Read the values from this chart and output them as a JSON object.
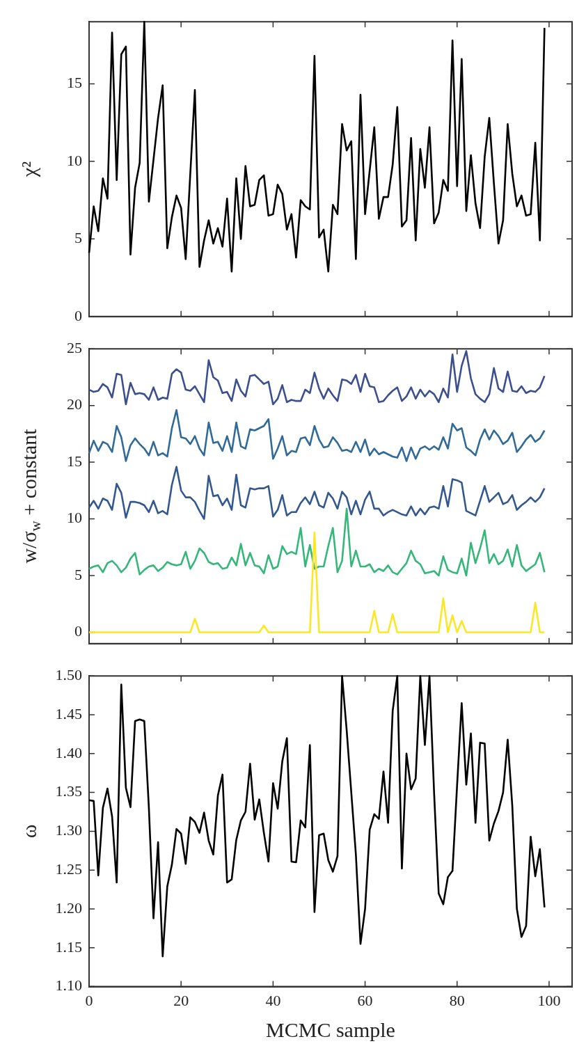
{
  "chart_data": [
    {
      "type": "line",
      "ylabel": "χ²",
      "xlim": [
        0,
        105
      ],
      "xticks": [
        0,
        20,
        40,
        60,
        80,
        100
      ],
      "ylim": [
        0,
        19
      ],
      "yticks": [
        0,
        5,
        10,
        15
      ],
      "tick_labels": "y",
      "legend": false,
      "marker": "none",
      "line_style": "solid",
      "x": [
        0,
        1,
        2,
        3,
        4,
        5,
        6,
        7,
        8,
        9,
        10,
        11,
        12,
        13,
        14,
        15,
        16,
        17,
        18,
        19,
        20,
        21,
        22,
        23,
        24,
        25,
        26,
        27,
        28,
        29,
        30,
        31,
        32,
        33,
        34,
        35,
        36,
        37,
        38,
        39,
        40,
        41,
        42,
        43,
        44,
        45,
        46,
        47,
        48,
        49,
        50,
        51,
        52,
        53,
        54,
        55,
        56,
        57,
        58,
        59,
        60,
        61,
        62,
        63,
        64,
        65,
        66,
        67,
        68,
        69,
        70,
        71,
        72,
        73,
        74,
        75,
        76,
        77,
        78,
        79,
        80,
        81,
        82,
        83,
        84,
        85,
        86,
        87,
        88,
        89,
        90,
        91,
        92,
        93,
        94,
        95,
        96,
        97,
        98,
        99
      ],
      "series": [
        {
          "color": "#000000",
          "values": [
            4.1,
            7.1,
            5.5,
            8.9,
            7.6,
            18.3,
            8.8,
            16.9,
            17.4,
            4.0,
            8.3,
            9.9,
            19,
            7.4,
            10.1,
            12.8,
            14.9,
            4.4,
            6.4,
            7.8,
            7.0,
            3.7,
            9.2,
            14.6,
            3.2,
            4.9,
            6.2,
            4.7,
            5.7,
            4.5,
            7.6,
            2.9,
            8.9,
            5.0,
            9.7,
            7.1,
            7.2,
            8.8,
            9.1,
            6.5,
            6.6,
            8.5,
            7.9,
            5.6,
            6.6,
            3.8,
            7.5,
            7.1,
            6.9,
            16.8,
            5.1,
            5.6,
            2.9,
            7.2,
            6.6,
            12.4,
            10.7,
            11.3,
            3.7,
            14.3,
            6.6,
            9.4,
            12.2,
            6.3,
            7.7,
            7.7,
            9.8,
            13.5,
            5.8,
            6.2,
            11.5,
            4.9,
            10.8,
            8.3,
            12.2,
            6.0,
            6.7,
            8.8,
            8.1,
            17.8,
            8.4,
            16.6,
            6.8,
            10.4,
            7.3,
            5.7,
            10.3,
            12.8,
            8.6,
            4.7,
            6.2,
            12.4,
            9.2,
            7.1,
            7.8,
            6.5,
            6.6,
            11.2,
            4.9,
            18.6
          ]
        }
      ]
    },
    {
      "type": "line",
      "ylabel": "w/σ$_{w}$ + constant",
      "xlim": [
        0,
        105
      ],
      "xticks": [
        0,
        20,
        40,
        60,
        80,
        100
      ],
      "ylim": [
        -1,
        25
      ],
      "yticks": [
        0,
        5,
        10,
        15,
        20,
        25
      ],
      "tick_labels": "y",
      "legend": false,
      "marker": "none",
      "line_style": "solid",
      "x": [
        0,
        1,
        2,
        3,
        4,
        5,
        6,
        7,
        8,
        9,
        10,
        11,
        12,
        13,
        14,
        15,
        16,
        17,
        18,
        19,
        20,
        21,
        22,
        23,
        24,
        25,
        26,
        27,
        28,
        29,
        30,
        31,
        32,
        33,
        34,
        35,
        36,
        37,
        38,
        39,
        40,
        41,
        42,
        43,
        44,
        45,
        46,
        47,
        48,
        49,
        50,
        51,
        52,
        53,
        54,
        55,
        56,
        57,
        58,
        59,
        60,
        61,
        62,
        63,
        64,
        65,
        66,
        67,
        68,
        69,
        70,
        71,
        72,
        73,
        74,
        75,
        76,
        77,
        78,
        79,
        80,
        81,
        82,
        83,
        84,
        85,
        86,
        87,
        88,
        89,
        90,
        91,
        92,
        93,
        94,
        95,
        96,
        97,
        98,
        99
      ],
      "series": [
        {
          "color": "#fde725",
          "values": [
            0,
            0,
            0,
            0,
            0,
            0,
            0,
            0,
            0,
            0,
            0,
            0,
            0,
            0,
            0,
            0,
            0,
            0,
            0,
            0,
            0,
            0,
            0,
            1.2,
            0,
            0,
            0,
            0,
            0,
            0,
            0,
            0,
            0,
            0,
            0,
            0,
            0,
            0,
            0.6,
            0,
            0,
            0,
            0,
            0,
            0,
            0,
            0,
            0,
            0,
            8.8,
            0,
            0,
            0,
            0,
            0,
            0,
            0,
            0,
            0,
            0,
            0,
            0,
            1.9,
            0,
            0,
            0,
            1.6,
            0,
            0,
            0,
            0,
            0,
            0,
            0,
            0,
            0,
            0,
            3.0,
            0,
            1.5,
            0,
            1.0,
            0,
            0,
            0,
            0,
            0,
            0,
            0,
            0,
            0,
            0,
            0,
            0,
            0,
            0,
            0,
            2.6,
            0,
            0
          ]
        },
        {
          "color": "#35b779",
          "values": [
            5.6,
            5.8,
            5.9,
            5.3,
            6.1,
            6.3,
            5.9,
            5.3,
            5.7,
            6.5,
            7.0,
            5.1,
            5.5,
            5.8,
            5.9,
            5.4,
            5.7,
            6.2,
            6.0,
            5.9,
            6.0,
            7.1,
            5.6,
            6.3,
            7.4,
            7.0,
            6.2,
            6.0,
            6.1,
            5.6,
            5.7,
            6.6,
            5.9,
            7.8,
            5.9,
            7.0,
            5.9,
            5.8,
            5.2,
            6.8,
            5.6,
            5.8,
            7.6,
            6.9,
            7.1,
            6.9,
            9.2,
            5.8,
            7.7,
            5.6,
            5.8,
            5.8,
            7.6,
            9.2,
            5.3,
            6.3,
            10.9,
            5.8,
            7.2,
            5.8,
            5.8,
            6.0,
            5.3,
            5.6,
            5.4,
            5.9,
            5.3,
            5.1,
            5.6,
            6.1,
            7.2,
            6.3,
            6.0,
            5.2,
            5.3,
            5.4,
            5.0,
            6.7,
            5.5,
            5.3,
            5.2,
            6.5,
            5.0,
            7.9,
            6.1,
            7.4,
            9.0,
            6.1,
            6.9,
            6.0,
            6.3,
            7.3,
            5.8,
            7.7,
            5.9,
            5.4,
            5.7,
            6.0,
            7.0,
            5.3
          ]
        },
        {
          "color": "#33588f",
          "values": [
            11.0,
            11.6,
            10.9,
            11.8,
            11.6,
            10.8,
            13.1,
            12.3,
            10.1,
            11.5,
            11.5,
            11.4,
            11.2,
            10.6,
            11.6,
            10.5,
            10.7,
            10.4,
            13.0,
            14.6,
            12.5,
            11.9,
            11.9,
            11.5,
            10.7,
            10.0,
            13.8,
            12.0,
            12.1,
            11.2,
            11.8,
            10.8,
            13.9,
            11.2,
            11.0,
            12.7,
            12.6,
            12.7,
            12.7,
            12.9,
            10.2,
            10.8,
            12.1,
            10.3,
            10.6,
            10.6,
            11.4,
            11.9,
            11.3,
            12.4,
            11.2,
            11.0,
            12.3,
            11.8,
            10.9,
            12.4,
            11.9,
            10.4,
            11.6,
            10.4,
            11.7,
            12.4,
            10.9,
            10.9,
            10.3,
            10.6,
            10.8,
            10.6,
            10.4,
            10.3,
            11.1,
            10.3,
            10.9,
            10.4,
            11.0,
            11.1,
            10.9,
            12.9,
            11.1,
            13.5,
            13.4,
            13.2,
            10.7,
            10.5,
            10.3,
            11.6,
            12.9,
            11.5,
            11.9,
            12.3,
            11.3,
            11.5,
            12.1,
            10.8,
            11.2,
            11.5,
            11.9,
            11.5,
            11.9,
            12.7
          ]
        },
        {
          "color": "#2f6a98",
          "values": [
            15.8,
            16.9,
            16.0,
            16.8,
            16.6,
            15.9,
            18.2,
            17.2,
            15.1,
            16.5,
            17.1,
            16.6,
            16.2,
            15.6,
            16.8,
            15.6,
            15.8,
            15.5,
            18.0,
            19.6,
            17.2,
            17.1,
            16.6,
            17.3,
            16.2,
            15.6,
            18.5,
            16.7,
            16.8,
            16.0,
            17.3,
            15.9,
            18.5,
            16.4,
            16.2,
            17.9,
            17.8,
            18.0,
            18.2,
            18.8,
            15.3,
            16.2,
            17.3,
            15.6,
            16.0,
            15.9,
            17.1,
            17.2,
            16.5,
            18.2,
            17.0,
            16.3,
            16.4,
            17.2,
            16.7,
            16.0,
            16.1,
            15.9,
            16.8,
            15.9,
            17.0,
            15.6,
            16.2,
            15.7,
            15.9,
            15.7,
            15.5,
            15.4,
            16.3,
            15.1,
            16.3,
            15.3,
            16.2,
            16.4,
            16.1,
            16.4,
            16.1,
            17.2,
            16.2,
            18.4,
            17.8,
            18.0,
            16.3,
            16.0,
            15.6,
            17.0,
            17.9,
            17.0,
            17.8,
            17.3,
            16.6,
            16.9,
            17.6,
            15.9,
            16.4,
            17.0,
            17.4,
            16.8,
            17.1,
            17.8
          ]
        },
        {
          "color": "#3b4f8e",
          "values": [
            21.4,
            21.2,
            21.3,
            21.9,
            21.6,
            20.7,
            22.8,
            22.7,
            20.1,
            22.0,
            21.0,
            21.1,
            21.0,
            20.5,
            21.6,
            20.5,
            20.7,
            20.6,
            22.8,
            23.2,
            22.9,
            21.4,
            21.3,
            21.7,
            21.0,
            20.3,
            24.0,
            22.5,
            22.2,
            21.1,
            21.2,
            20.4,
            22.3,
            21.3,
            20.8,
            22.6,
            22.7,
            22.3,
            21.9,
            22.1,
            20.1,
            20.6,
            21.8,
            20.3,
            20.5,
            20.4,
            20.4,
            21.4,
            21.1,
            22.9,
            21.5,
            20.6,
            21.5,
            20.9,
            20.4,
            22.3,
            22.2,
            21.9,
            22.7,
            21.2,
            22.8,
            21.7,
            21.6,
            20.3,
            20.4,
            20.9,
            21.3,
            21.6,
            20.4,
            20.8,
            21.6,
            20.6,
            21.4,
            20.8,
            21.3,
            21.0,
            20.3,
            21.5,
            20.7,
            24.5,
            21.2,
            23.5,
            24.8,
            22.4,
            21.0,
            20.6,
            20.3,
            21.0,
            23.3,
            21.5,
            21.2,
            23.0,
            21.3,
            21.2,
            21.7,
            21.1,
            21.3,
            21.2,
            21.6,
            22.6
          ]
        }
      ]
    },
    {
      "type": "line",
      "xlabel": "MCMC sample",
      "ylabel": "ω",
      "xlim": [
        0,
        105
      ],
      "xticks": [
        0,
        20,
        40,
        60,
        80,
        100
      ],
      "ylim": [
        1.1,
        1.5
      ],
      "yticks": [
        {
          "value": 1.1,
          "label": "1.10"
        },
        {
          "value": 1.15,
          "label": "1.15"
        },
        {
          "value": 1.2,
          "label": "1.20"
        },
        {
          "value": 1.25,
          "label": "1.25"
        },
        {
          "value": 1.3,
          "label": "1.30"
        },
        {
          "value": 1.35,
          "label": "1.35"
        },
        {
          "value": 1.4,
          "label": "1.40"
        },
        {
          "value": 1.45,
          "label": "1.45"
        },
        {
          "value": 1.5,
          "label": "1.50"
        }
      ],
      "legend": false,
      "marker": "none",
      "line_style": "solid",
      "x": [
        0,
        1,
        2,
        3,
        4,
        5,
        6,
        7,
        8,
        9,
        10,
        11,
        12,
        13,
        14,
        15,
        16,
        17,
        18,
        19,
        20,
        21,
        22,
        23,
        24,
        25,
        26,
        27,
        28,
        29,
        30,
        31,
        32,
        33,
        34,
        35,
        36,
        37,
        38,
        39,
        40,
        41,
        42,
        43,
        44,
        45,
        46,
        47,
        48,
        49,
        50,
        51,
        52,
        53,
        54,
        55,
        56,
        57,
        58,
        59,
        60,
        61,
        62,
        63,
        64,
        65,
        66,
        67,
        68,
        69,
        70,
        71,
        72,
        73,
        74,
        75,
        76,
        77,
        78,
        79,
        80,
        81,
        82,
        83,
        84,
        85,
        86,
        87,
        88,
        89,
        90,
        91,
        92,
        93,
        94,
        95,
        96,
        97,
        98,
        99
      ],
      "series": [
        {
          "color": "#000000",
          "values": [
            1.34,
            1.339,
            1.243,
            1.33,
            1.355,
            1.319,
            1.234,
            1.489,
            1.356,
            1.331,
            1.442,
            1.444,
            1.442,
            1.33,
            1.188,
            1.286,
            1.139,
            1.229,
            1.257,
            1.303,
            1.297,
            1.258,
            1.318,
            1.312,
            1.298,
            1.324,
            1.288,
            1.27,
            1.346,
            1.373,
            1.234,
            1.238,
            1.289,
            1.314,
            1.325,
            1.387,
            1.315,
            1.341,
            1.298,
            1.261,
            1.362,
            1.329,
            1.39,
            1.42,
            1.261,
            1.26,
            1.314,
            1.305,
            1.411,
            1.196,
            1.295,
            1.297,
            1.263,
            1.248,
            1.268,
            1.5,
            1.43,
            1.35,
            1.27,
            1.155,
            1.2,
            1.302,
            1.322,
            1.316,
            1.377,
            1.311,
            1.455,
            1.5,
            1.252,
            1.4,
            1.354,
            1.368,
            1.5,
            1.411,
            1.5,
            1.35,
            1.22,
            1.206,
            1.241,
            1.249,
            1.359,
            1.465,
            1.36,
            1.426,
            1.311,
            1.414,
            1.413,
            1.288,
            1.31,
            1.326,
            1.35,
            1.418,
            1.333,
            1.2,
            1.164,
            1.178,
            1.293,
            1.242,
            1.277,
            1.202
          ]
        }
      ]
    }
  ]
}
